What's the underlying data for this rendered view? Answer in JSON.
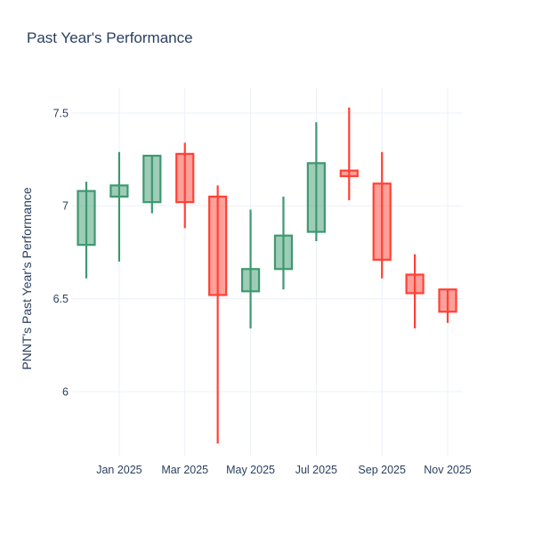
{
  "title": "Past Year's Performance",
  "chart_data": {
    "type": "candlestick",
    "title": "Past Year's Performance",
    "xlabel": "",
    "ylabel": "PNNT's Past Year's Performance",
    "x": [
      "Dec 2024",
      "Jan 2025",
      "Feb 2025",
      "Mar 2025",
      "Apr 2025",
      "May 2025",
      "Jun 2025",
      "Jul 2025",
      "Aug 2025",
      "Sep 2025",
      "Oct 2025",
      "Nov 2025"
    ],
    "open": [
      6.79,
      7.05,
      7.02,
      7.28,
      7.05,
      6.54,
      6.66,
      6.86,
      7.19,
      7.12,
      6.63,
      6.55
    ],
    "high": [
      7.13,
      7.29,
      7.27,
      7.34,
      7.11,
      6.98,
      7.05,
      7.45,
      7.53,
      7.29,
      6.74,
      6.55
    ],
    "low": [
      6.61,
      6.7,
      6.96,
      6.88,
      5.72,
      6.34,
      6.55,
      6.81,
      7.03,
      6.61,
      6.34,
      6.37
    ],
    "close": [
      7.08,
      7.11,
      7.27,
      7.02,
      6.52,
      6.66,
      6.84,
      7.23,
      7.16,
      6.71,
      6.53,
      6.43
    ],
    "y_ticks": [
      6,
      6.5,
      7,
      7.5
    ],
    "x_tick_labels": [
      "Jan 2025",
      "Mar 2025",
      "May 2025",
      "Jul 2025",
      "Sep 2025",
      "Nov 2025"
    ],
    "x_tick_indices": [
      1,
      3,
      5,
      7,
      9,
      11
    ],
    "ylim": [
      5.655,
      7.634
    ],
    "grid": true,
    "legend": "none",
    "colors": {
      "increasing_line": "#3D9970",
      "increasing_fill": "rgba(61,153,112,0.5)",
      "decreasing_line": "#FF4136",
      "decreasing_fill": "rgba(255,65,54,0.5)",
      "grid": "#EBF0F8",
      "text": "#2a3f5f",
      "background": "#ffffff"
    }
  }
}
